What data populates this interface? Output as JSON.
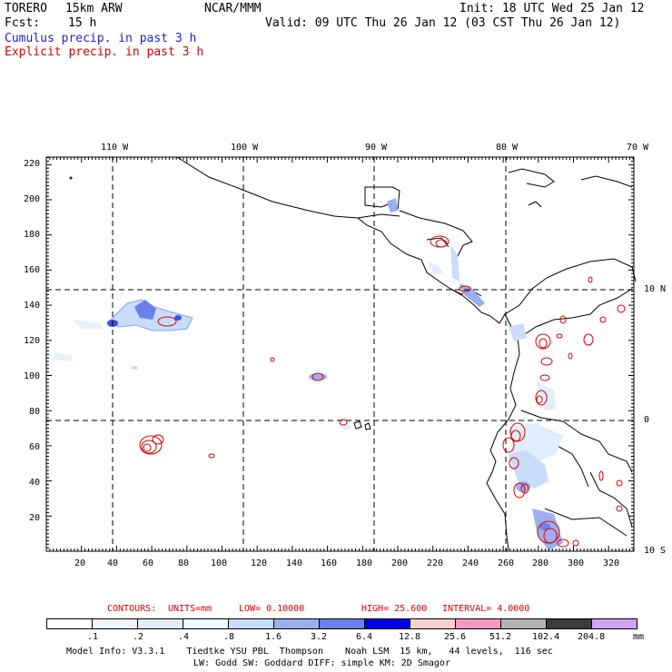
{
  "header": {
    "model": "TORERO",
    "resolution": "15km ARW",
    "org": "NCAR/MMM",
    "init": "Init: 18 UTC Wed 25 Jan 12",
    "fcst_label": "Fcst:",
    "fcst_value": "15 h",
    "valid": "Valid: 09 UTC Thu 26 Jan 12 (03 CST Thu 26 Jan 12)",
    "field1": "Cumulus precip. in past 3 h",
    "field2": "Explicit precip. in past 3 h"
  },
  "map": {
    "lon_labels": [
      "110 W",
      "100 W",
      "90 W",
      "80 W",
      "70 W"
    ],
    "lat_labels": [
      "10 N",
      "0",
      "10 S"
    ],
    "x_ticks": [
      "20",
      "40",
      "60",
      "80",
      "100",
      "120",
      "140",
      "160",
      "180",
      "200",
      "220",
      "240",
      "260",
      "280",
      "300",
      "320"
    ],
    "y_ticks": [
      "220",
      "200",
      "180",
      "160",
      "140",
      "120",
      "100",
      "80",
      "60",
      "40",
      "20"
    ]
  },
  "contours": {
    "label": "CONTOURS:",
    "units": "UNITS=mm",
    "low": "LOW= 0.10000",
    "high": "HIGH= 25.600",
    "interval": "INTERVAL= 4.0000"
  },
  "colorbar": {
    "values": [
      ".1",
      ".2",
      ".4",
      ".8",
      "1.6",
      "3.2",
      "6.4",
      "12.8",
      "25.6",
      "51.2",
      "102.4",
      "204.8"
    ],
    "unit": "mm",
    "colors": [
      "#ffffff",
      "#f0f4ff",
      "#e0ecff",
      "#e8fcfc",
      "#c8dcfc",
      "#9ab0f0",
      "#6a80ee",
      "#0000e6",
      "#fcd0d0",
      "#f49ac0",
      "#b4b4b4",
      "#3c3c3c",
      "#d4a4f4"
    ]
  },
  "footer": {
    "line1": "Model Info: V3.3.1    Tiedtke YSU PBL  Thompson    Noah LSM  15 km,   44 levels,  116 sec",
    "line2": "LW: Godd SW: Goddard DIFF: simple KM: 2D Smagor"
  }
}
